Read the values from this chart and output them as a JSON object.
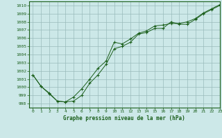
{
  "title": "Graphe pression niveau de la mer (hPa)",
  "background_color": "#cce8e8",
  "plot_bg_color": "#cce8e8",
  "grid_color": "#99bbbb",
  "line_color": "#1a5e1a",
  "xlim": [
    -0.5,
    23
  ],
  "ylim": [
    997.5,
    1010.5
  ],
  "xticks": [
    0,
    1,
    2,
    3,
    4,
    5,
    6,
    7,
    8,
    9,
    10,
    11,
    12,
    13,
    14,
    15,
    16,
    17,
    18,
    19,
    20,
    21,
    22,
    23
  ],
  "yticks": [
    998,
    999,
    1000,
    1001,
    1002,
    1003,
    1004,
    1005,
    1006,
    1007,
    1008,
    1009,
    1010
  ],
  "series1_x": [
    0,
    1,
    2,
    3,
    4,
    5,
    6,
    7,
    8,
    9,
    10,
    11,
    12,
    13,
    14,
    15,
    16,
    17,
    18,
    19,
    20,
    21,
    22,
    23
  ],
  "series1_y": [
    1001.5,
    1000.1,
    999.3,
    998.3,
    998.2,
    998.3,
    999.0,
    1000.5,
    1001.5,
    1002.8,
    1004.7,
    1005.0,
    1005.5,
    1006.5,
    1006.7,
    1007.2,
    1007.2,
    1008.0,
    1007.7,
    1007.7,
    1008.3,
    1009.0,
    1009.5,
    1010.0
  ],
  "series2_x": [
    0,
    1,
    2,
    3,
    4,
    5,
    6,
    7,
    8,
    9,
    10,
    11,
    12,
    13,
    14,
    15,
    16,
    17,
    18,
    19,
    20,
    21,
    22,
    23
  ],
  "series2_y": [
    1001.5,
    1000.1,
    999.2,
    998.3,
    998.2,
    998.8,
    999.8,
    1001.0,
    1002.3,
    1003.2,
    1005.5,
    1005.3,
    1005.9,
    1006.6,
    1006.9,
    1007.5,
    1007.6,
    1007.8,
    1007.8,
    1008.0,
    1008.4,
    1009.1,
    1009.6,
    1010.1
  ],
  "title_fontsize": 5.5,
  "tick_fontsize": 4.5
}
